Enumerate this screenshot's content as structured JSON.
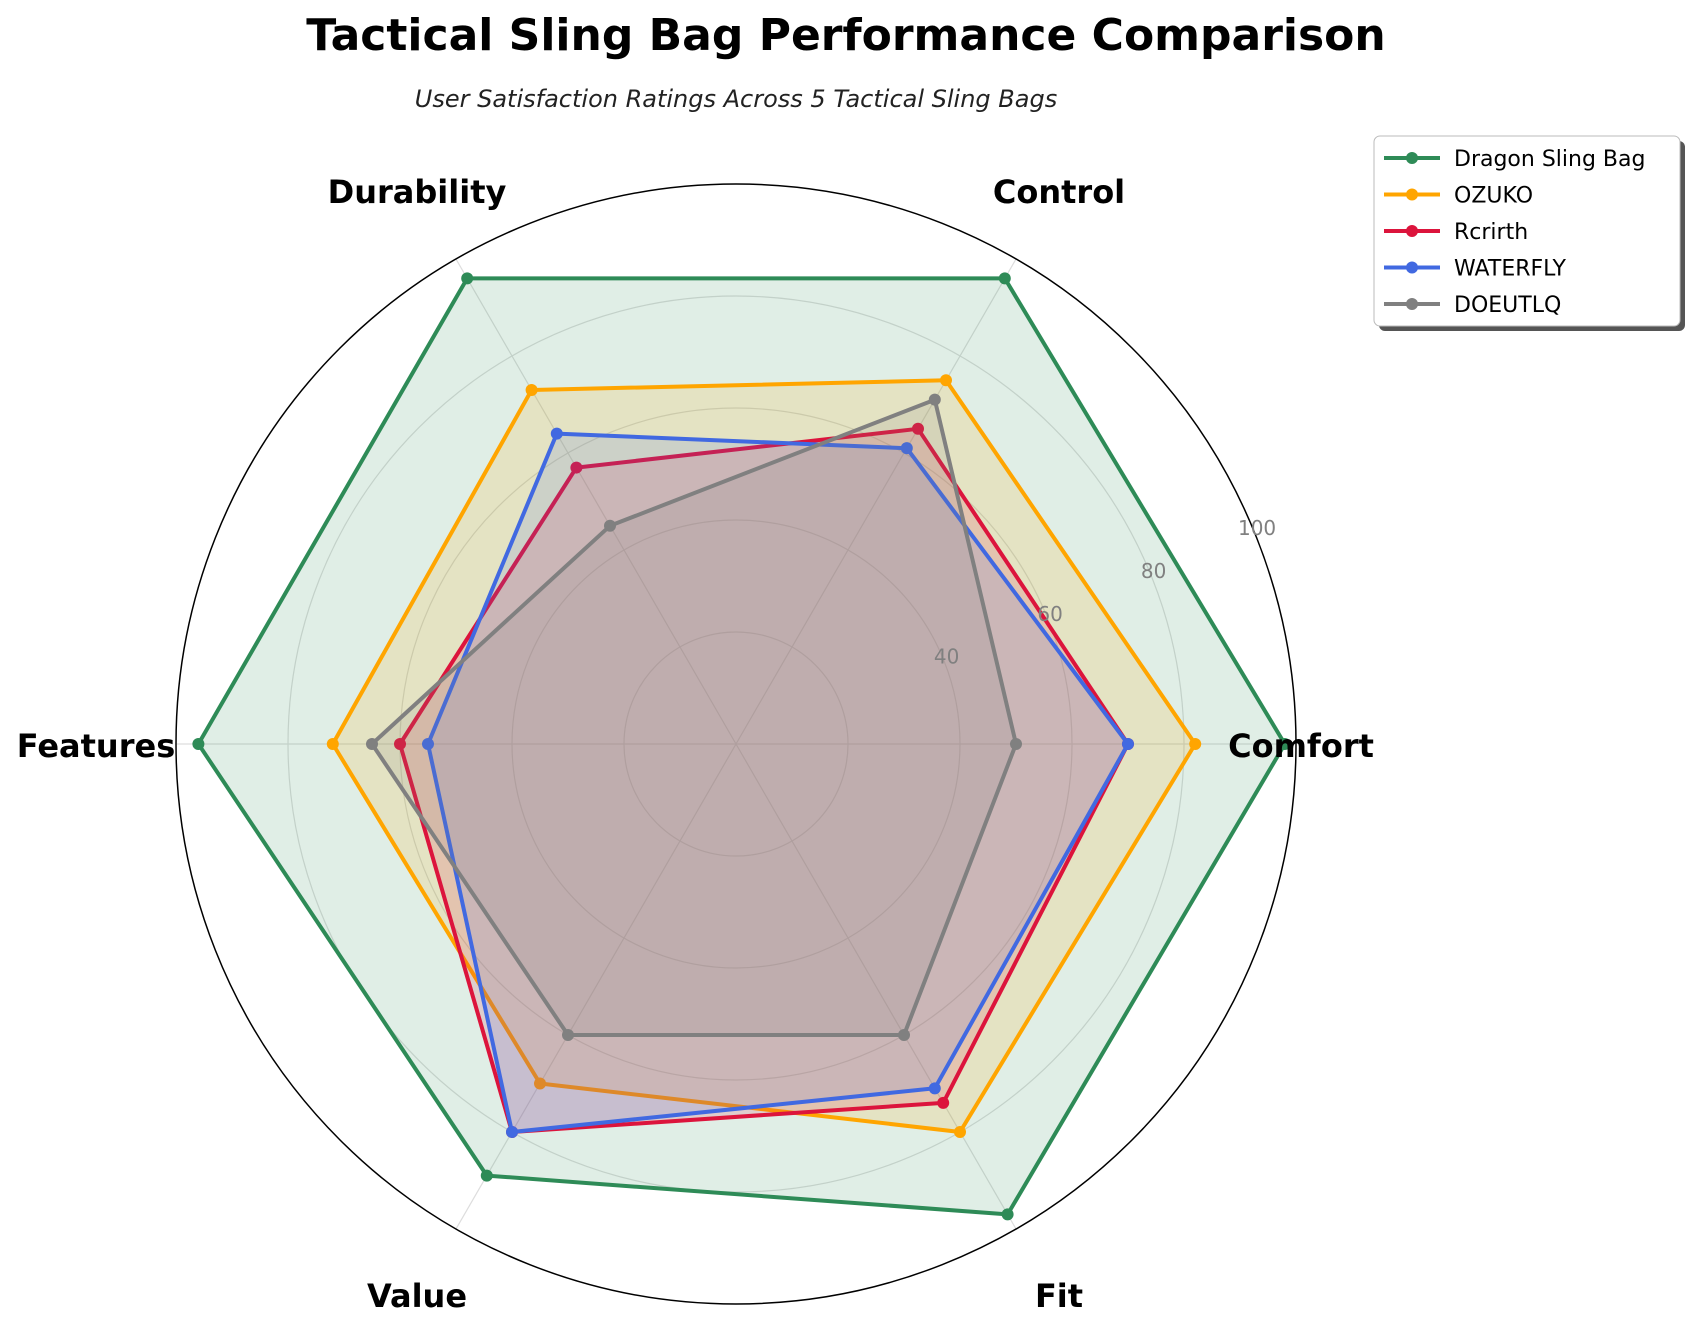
{
  "chart_data": {
    "type": "radar",
    "title": "Tactical Sling Bag Performance Comparison",
    "subtitle": "User Satisfaction Ratings Across 5 Tactical Sling Bags",
    "categories": [
      "Comfort",
      "Control",
      "Durability",
      "Features",
      "Value",
      "Fit"
    ],
    "rlim": [
      0,
      100
    ],
    "rticks": [
      40,
      60,
      80,
      100
    ],
    "legend_position": "top-right",
    "series": [
      {
        "name": "Dragon Sling Bag",
        "color": "#2e8b57",
        "values": [
          98,
          96,
          96,
          96,
          89,
          97
        ]
      },
      {
        "name": "OZUKO",
        "color": "#ffa500",
        "values": [
          82,
          75,
          73,
          72,
          70,
          80
        ]
      },
      {
        "name": "Rcrirth",
        "color": "#dc143c",
        "values": [
          70,
          65,
          57,
          60,
          80,
          74
        ]
      },
      {
        "name": "WATERFLY",
        "color": "#4169e1",
        "values": [
          70,
          61,
          64,
          55,
          80,
          71
        ]
      },
      {
        "name": "DOEUTLQ",
        "color": "#808080",
        "values": [
          50,
          71,
          45,
          65,
          60,
          60
        ]
      }
    ]
  }
}
